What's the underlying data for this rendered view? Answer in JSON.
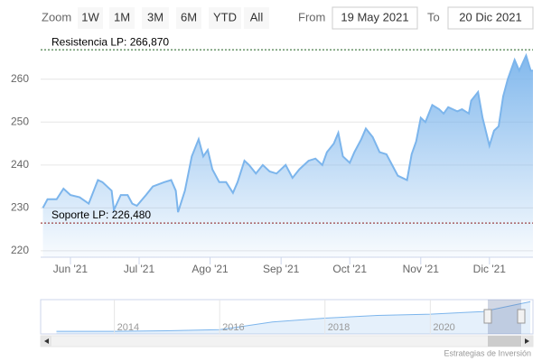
{
  "chart_data": {
    "type": "area",
    "range_selector": {
      "zoom_label": "Zoom",
      "buttons": [
        "1W",
        "1M",
        "3M",
        "6M",
        "YTD",
        "All"
      ],
      "from_label": "From",
      "from": "19 May 2021",
      "to_label": "To",
      "to": "20 Dic 2021"
    },
    "x": [
      "2021-05-20",
      "2021-05-22",
      "2021-05-26",
      "2021-05-29",
      "2021-06-01",
      "2021-06-05",
      "2021-06-09",
      "2021-06-13",
      "2021-06-15",
      "2021-06-19",
      "2021-06-20",
      "2021-06-23",
      "2021-06-26",
      "2021-06-28",
      "2021-06-30",
      "2021-07-04",
      "2021-07-07",
      "2021-07-12",
      "2021-07-15",
      "2021-07-17",
      "2021-07-18",
      "2021-07-21",
      "2021-07-24",
      "2021-07-27",
      "2021-07-29",
      "2021-07-31",
      "2021-08-02",
      "2021-08-05",
      "2021-08-08",
      "2021-08-11",
      "2021-08-13",
      "2021-08-16",
      "2021-08-18",
      "2021-08-21",
      "2021-08-24",
      "2021-08-27",
      "2021-08-30",
      "2021-09-03",
      "2021-09-06",
      "2021-09-09",
      "2021-09-13",
      "2021-09-16",
      "2021-09-19",
      "2021-09-21",
      "2021-09-24",
      "2021-09-26",
      "2021-09-28",
      "2021-10-01",
      "2021-10-03",
      "2021-10-06",
      "2021-10-08",
      "2021-10-11",
      "2021-10-14",
      "2021-10-17",
      "2021-10-19",
      "2021-10-22",
      "2021-10-26",
      "2021-10-28",
      "2021-10-30",
      "2021-11-01",
      "2021-11-03",
      "2021-11-06",
      "2021-11-09",
      "2021-11-11",
      "2021-11-13",
      "2021-11-17",
      "2021-11-19",
      "2021-11-22",
      "2021-11-23",
      "2021-11-26",
      "2021-11-28",
      "2021-12-01",
      "2021-12-03",
      "2021-12-05",
      "2021-12-07",
      "2021-12-09",
      "2021-12-12",
      "2021-12-14",
      "2021-12-17",
      "2021-12-19",
      "2021-12-20"
    ],
    "values": [
      230,
      232,
      232,
      234.5,
      233,
      232.5,
      231,
      236.5,
      236,
      234,
      229.5,
      233,
      233,
      231,
      230.5,
      233,
      235,
      236,
      236.5,
      234,
      229,
      234,
      242,
      246,
      242,
      243.5,
      239,
      236,
      236,
      233.5,
      236,
      241,
      240,
      238,
      240,
      238.5,
      238,
      240,
      237,
      239,
      241,
      241.5,
      240,
      243,
      245,
      247.5,
      242,
      240.5,
      243,
      246,
      248.5,
      246.5,
      243,
      242.5,
      240.5,
      237.5,
      236.5,
      242.5,
      245.5,
      251,
      250,
      254,
      253,
      252,
      253.5,
      252.5,
      253,
      252,
      255,
      257,
      251,
      244.5,
      248,
      249,
      256,
      260,
      264.5,
      262,
      265.5,
      262,
      262
    ],
    "color": "#7cb5ec",
    "xlim": [
      "2021-05-19",
      "2021-12-20"
    ],
    "xticks": [
      {
        "value": "2021-06-01",
        "label": "Jun '21"
      },
      {
        "value": "2021-07-01",
        "label": "Jul '21"
      },
      {
        "value": "2021-08-01",
        "label": "Ago '21"
      },
      {
        "value": "2021-09-01",
        "label": "Sep '21"
      },
      {
        "value": "2021-10-01",
        "label": "Oct '21"
      },
      {
        "value": "2021-11-01",
        "label": "Nov '21"
      },
      {
        "value": "2021-12-01",
        "label": "Dic '21"
      }
    ],
    "ylim": [
      218.5,
      269
    ],
    "yticks": [
      220,
      230,
      240,
      250,
      260
    ],
    "grid": true,
    "plot_lines": [
      {
        "value": 266.87,
        "label": "Resistencia LP: 266,870",
        "color": "#1f5f1f"
      },
      {
        "value": 226.48,
        "label": "Soporte LP: 226,480",
        "color": "#8b1a1a"
      }
    ],
    "navigator": {
      "x": [
        2012.9,
        2014,
        2015,
        2016,
        2017,
        2018,
        2019,
        2020,
        2021,
        2021.9
      ],
      "values": [
        150,
        150,
        152,
        156,
        185,
        200,
        210,
        215,
        225,
        262
      ],
      "xlim": [
        2012.6,
        2021.95
      ],
      "ylim": [
        140,
        270
      ],
      "xticks": [
        2014,
        2016,
        2018,
        2020
      ]
    },
    "credits": "Estrategias de Inversión"
  }
}
